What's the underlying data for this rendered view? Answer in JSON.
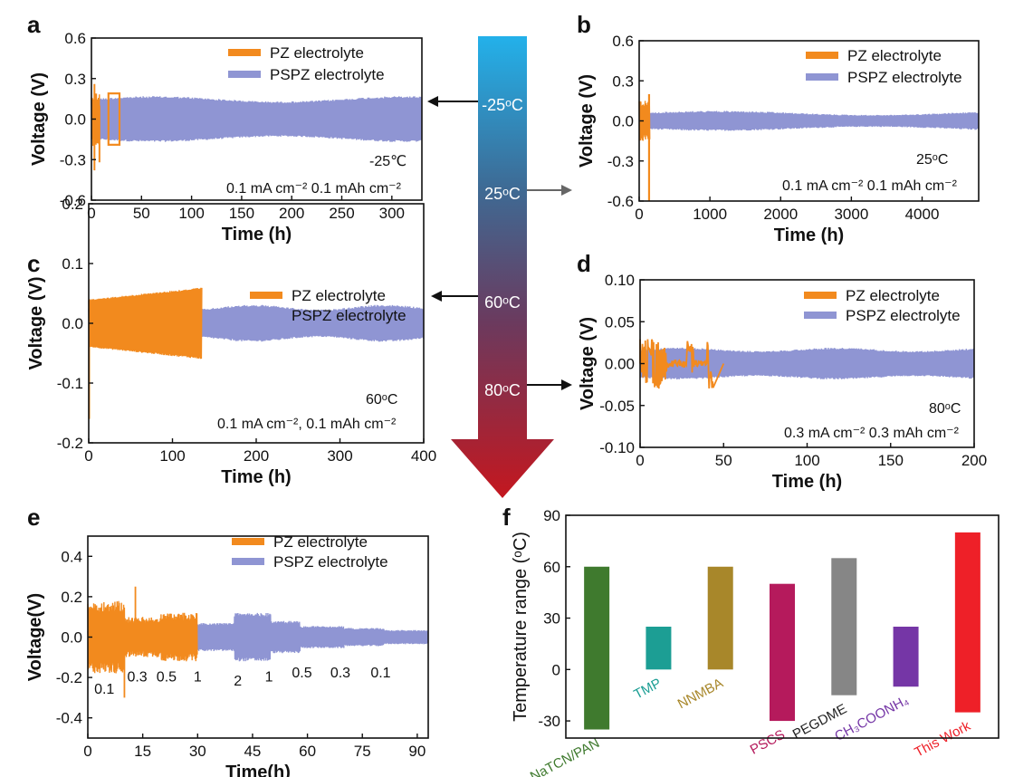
{
  "chart_data": [
    {
      "panel": "a",
      "type": "line",
      "xlabel": "Time (h)",
      "ylabel": "Voltage (V)",
      "xlim": [
        0,
        330
      ],
      "ylim": [
        -0.6,
        0.6
      ],
      "xticks": [
        0,
        50,
        100,
        150,
        200,
        250,
        300
      ],
      "yticks": [
        -0.6,
        -0.3,
        0.0,
        0.3,
        0.6
      ],
      "ytick_labels": [
        "-0.6",
        "-0.3",
        "0.0",
        "0.3",
        "0.6"
      ],
      "series": [
        {
          "name": "PZ electrolyte",
          "color": "#f28a1e",
          "x_range": [
            0,
            28
          ],
          "amplitude": 0.2,
          "spike_low": -0.38,
          "spike_high": 0.26
        },
        {
          "name": "PSPZ electrolyte",
          "color": "#8f95d3",
          "x_range": [
            0,
            330
          ],
          "amplitude": 0.15
        }
      ],
      "annotations": [
        "-25℃",
        "0.1 mA cm⁻²  0.1 mAh cm⁻²"
      ]
    },
    {
      "panel": "b",
      "type": "line",
      "xlabel": "Time (h)",
      "ylabel": "Voltage (V)",
      "xlim": [
        0,
        4800
      ],
      "ylim": [
        -0.6,
        0.6
      ],
      "xticks": [
        0,
        1000,
        2000,
        3000,
        4000
      ],
      "yticks": [
        -0.6,
        -0.3,
        0.0,
        0.3,
        0.6
      ],
      "ytick_labels": [
        "-0.6",
        "-0.3",
        "0.0",
        "0.3",
        "0.6"
      ],
      "series": [
        {
          "name": "PZ electrolyte",
          "color": "#f28a1e",
          "x_range": [
            0,
            150
          ],
          "amplitude": 0.15,
          "spike_low": -0.6,
          "spike_high": 0.2
        },
        {
          "name": "PSPZ electrolyte",
          "color": "#8f95d3",
          "x_range": [
            0,
            4800
          ],
          "amplitude": 0.06
        }
      ],
      "annotations": [
        "25ᵒC",
        "0.1 mA cm⁻²  0.1 mAh cm⁻²"
      ]
    },
    {
      "panel": "c",
      "type": "line",
      "xlabel": "Time (h)",
      "ylabel": "Voltage (V)",
      "xlim": [
        0,
        400
      ],
      "ylim": [
        -0.2,
        0.2
      ],
      "xticks": [
        0,
        100,
        200,
        300,
        400
      ],
      "yticks": [
        -0.2,
        -0.1,
        0.0,
        0.1,
        0.2
      ],
      "ytick_labels": [
        "-0.2",
        "-0.1",
        "0.0",
        "0.1",
        "0.2"
      ],
      "series": [
        {
          "name": "PZ electrolyte",
          "color": "#f28a1e",
          "x_range": [
            0,
            135
          ],
          "amplitude_start": 0.04,
          "amplitude_end": 0.06
        },
        {
          "name": "PSPZ electrolyte",
          "color": "#8f95d3",
          "x_range": [
            0,
            400
          ],
          "amplitude": 0.027
        }
      ],
      "annotations": [
        "60ᵒC",
        "0.1 mA cm⁻², 0.1 mAh cm⁻²"
      ]
    },
    {
      "panel": "d",
      "type": "line",
      "xlabel": "Time (h)",
      "ylabel": "Voltage (V)",
      "xlim": [
        0,
        200
      ],
      "ylim": [
        -0.1,
        0.1
      ],
      "xticks": [
        0,
        50,
        100,
        150,
        200
      ],
      "yticks": [
        -0.1,
        -0.05,
        0.0,
        0.05,
        0.1
      ],
      "ytick_labels": [
        "-0.10",
        "-0.05",
        "0.00",
        "0.05",
        "0.10"
      ],
      "series": [
        {
          "name": "PZ electrolyte",
          "color": "#f28a1e",
          "x_range": [
            0,
            50
          ],
          "amplitude": 0.03
        },
        {
          "name": "PSPZ electrolyte",
          "color": "#8f95d3",
          "x_range": [
            0,
            200
          ],
          "amplitude": 0.017
        }
      ],
      "annotations": [
        "80ᵒC",
        "0.3 mA cm⁻²  0.3 mAh cm⁻²"
      ]
    },
    {
      "panel": "e",
      "type": "line",
      "xlabel": "Time(h)",
      "ylabel": "Voltage(V)",
      "xlim": [
        0,
        93
      ],
      "ylim": [
        -0.5,
        0.5
      ],
      "xticks": [
        0,
        15,
        30,
        45,
        60,
        75,
        90
      ],
      "yticks": [
        -0.4,
        -0.2,
        0.0,
        0.2,
        0.4
      ],
      "ytick_labels": [
        "-0.4",
        "-0.2",
        "0.0",
        "0.2",
        "0.4"
      ],
      "series": [
        {
          "name": "PZ electrolyte",
          "color": "#f28a1e",
          "x_range": [
            0,
            30
          ]
        },
        {
          "name": "PSPZ electrolyte",
          "color": "#8f95d3",
          "x_range": [
            0,
            93
          ]
        }
      ],
      "rate_labels": [
        "0.1",
        "0.3",
        "0.5",
        "1",
        "2",
        "1",
        "0.5",
        "0.3",
        "0.1"
      ],
      "rate_label_positions": [
        [
          4.5,
          -0.28
        ],
        [
          13.5,
          -0.22
        ],
        [
          21.5,
          -0.22
        ],
        [
          30,
          -0.22
        ],
        [
          41,
          -0.24
        ],
        [
          49.5,
          -0.22
        ],
        [
          58.5,
          -0.2
        ],
        [
          69,
          -0.2
        ],
        [
          80,
          -0.2
        ]
      ]
    },
    {
      "panel": "f",
      "type": "bar",
      "ylabel": "Temperature range (ᵒC)",
      "ylim": [
        -40,
        90
      ],
      "yticks": [
        -30,
        0,
        30,
        60,
        90
      ],
      "categories": [
        "NaTCN/PAN",
        "TMP",
        "NNMBA",
        "PSCS",
        "PEGDME",
        "CH₃COONH₄",
        "This Work"
      ],
      "ranges": [
        [
          -35,
          60
        ],
        [
          0,
          25
        ],
        [
          0,
          60
        ],
        [
          -30,
          50
        ],
        [
          -15,
          65
        ],
        [
          -10,
          25
        ],
        [
          -25,
          80
        ]
      ],
      "colors": [
        "#3f7a2e",
        "#1c9e94",
        "#a8872a",
        "#b51a5c",
        "#868686",
        "#7536a6",
        "#ee2028"
      ],
      "label_colors": [
        "#3f7a2e",
        "#1c9e94",
        "#a8872a",
        "#b51a5c",
        "#222222",
        "#7536a6",
        "#ee2028"
      ]
    }
  ],
  "temperature_arrow": {
    "labels": [
      "-25ᵒC",
      "25ᵒC",
      "60ᵒC",
      "80ᵒC"
    ]
  },
  "panel_letters": [
    "a",
    "b",
    "c",
    "d",
    "e",
    "f"
  ]
}
